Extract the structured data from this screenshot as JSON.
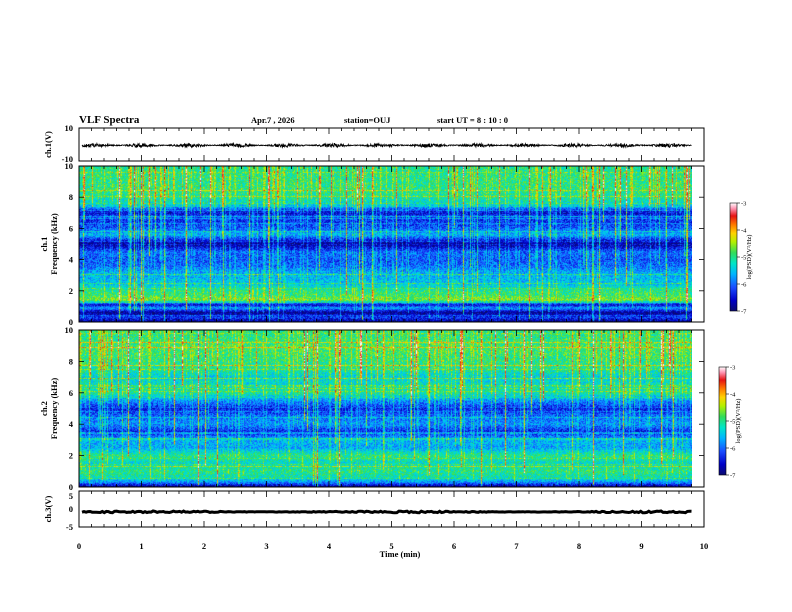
{
  "header": {
    "title": "VLF Spectra",
    "date": "Apr.7  , 2026",
    "station": "station=OUJ",
    "start_ut": "start  UT =   8  : 10 : 0"
  },
  "colors": {
    "colormap": [
      "#0a0a6e",
      "#0000c8",
      "#1a4dff",
      "#00b4ff",
      "#00e6c8",
      "#32dc5a",
      "#b4f000",
      "#ffd200",
      "#ff7800",
      "#e61414",
      "#ff96b4",
      "#ffffff"
    ]
  },
  "chart_data": [
    {
      "type": "line",
      "name": "ch1-waveform",
      "ylabel": "ch.1(V)",
      "ylim": [
        -10,
        10
      ],
      "yticks": [
        "10",
        "-10"
      ],
      "xlim": [
        0,
        10
      ],
      "baseline": -0.5,
      "amplitude": 1.2
    },
    {
      "type": "heatmap",
      "name": "ch1-spectrogram",
      "ylabel_top": "ch.1",
      "ylabel": "Frequency (kHz)",
      "ylim": [
        0,
        10
      ],
      "yticks": [
        "0",
        "2",
        "4",
        "6",
        "8",
        "10"
      ],
      "xlim": [
        0,
        10
      ],
      "data_extent_min": 9.8,
      "colorbar": {
        "label": "log(PSD)(V²/Hz)",
        "range": [
          -7,
          -3
        ],
        "ticks": [
          "-3",
          "-4",
          "-5",
          "-6",
          "-7"
        ]
      },
      "profile": {
        "freq_khz": [
          0,
          0.3,
          0.6,
          0.9,
          1.1,
          1.4,
          1.7,
          2.0,
          2.4,
          2.8,
          3.2,
          3.6,
          4.0,
          4.5,
          5.0,
          5.3,
          5.6,
          6.0,
          6.5,
          6.8,
          7.0,
          7.5,
          8.0,
          8.5,
          9.0,
          9.5,
          10.0
        ],
        "log_psd": [
          -6.9,
          -6.2,
          -6.9,
          -5.7,
          -6.6,
          -4.6,
          -4.9,
          -5.0,
          -5.5,
          -5.6,
          -5.7,
          -6.0,
          -6.1,
          -6.0,
          -6.9,
          -6.3,
          -5.6,
          -6.1,
          -6.3,
          -6.2,
          -6.7,
          -5.4,
          -5.1,
          -5.0,
          -5.0,
          -5.0,
          -5.1
        ]
      }
    },
    {
      "type": "heatmap",
      "name": "ch2-spectrogram",
      "ylabel_top": "ch.2",
      "ylabel": "Frequency (kHz)",
      "ylim": [
        0,
        10
      ],
      "yticks": [
        "0",
        "2",
        "4",
        "6",
        "8",
        "10"
      ],
      "xlim": [
        0,
        10
      ],
      "data_extent_min": 9.8,
      "colorbar": {
        "label": "log(PSD)(V²/Hz)",
        "range": [
          -7,
          -3
        ],
        "ticks": [
          "-3",
          "-4",
          "-5",
          "-6",
          "-7"
        ]
      },
      "profile": {
        "freq_khz": [
          0,
          0.3,
          0.6,
          1.0,
          1.5,
          2.0,
          2.5,
          3.0,
          3.5,
          4.0,
          4.5,
          5.0,
          5.5,
          6.0,
          6.5,
          7.0,
          7.5,
          8.0,
          8.5,
          9.0,
          9.5,
          10.0
        ],
        "log_psd": [
          -6.9,
          -5.8,
          -5.2,
          -5.0,
          -5.3,
          -5.0,
          -5.7,
          -5.6,
          -6.4,
          -5.8,
          -6.0,
          -6.4,
          -5.8,
          -5.1,
          -5.3,
          -5.4,
          -5.1,
          -5.0,
          -4.9,
          -4.9,
          -5.0,
          -5.0
        ]
      }
    },
    {
      "type": "line",
      "name": "ch3-waveform",
      "ylabel": "ch.3(V)",
      "ylim": [
        -5,
        5
      ],
      "yticks": [
        "5",
        "0",
        "-5"
      ],
      "xlim": [
        0,
        10
      ],
      "baseline": -0.8,
      "amplitude": 0.25,
      "xlabel": "Time (min)",
      "xticks": [
        "0",
        "1",
        "2",
        "3",
        "4",
        "5",
        "6",
        "7",
        "8",
        "9",
        "10"
      ]
    }
  ]
}
